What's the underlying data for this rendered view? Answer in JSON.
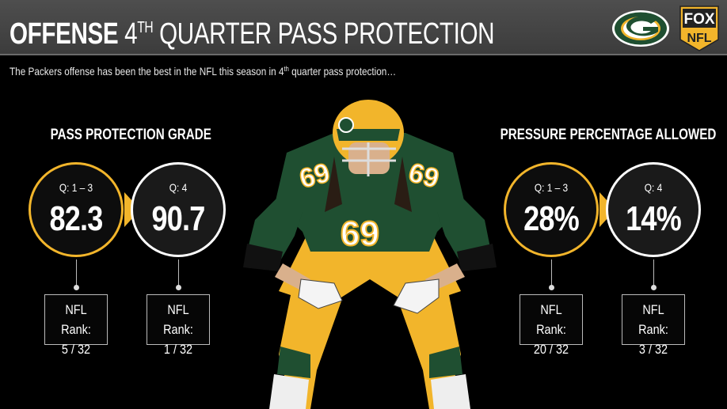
{
  "header": {
    "title_bold": "OFFENSE",
    "title_ordinal": "4",
    "title_sup": "TH",
    "title_rest": "QUARTER PASS PROTECTION",
    "team_logo_icon": "packers-g-logo-icon",
    "network_logo": {
      "line1": "FOX",
      "line2": "NFL"
    }
  },
  "subtitle": {
    "pre": "The Packers offense has been the best in the NFL this season in 4",
    "sup": "th",
    "post": " quarter pass protection…"
  },
  "sections": [
    {
      "title": "PASS PROTECTION GRADE",
      "q13": {
        "label": "Q: 1 – 3",
        "value": "82.3",
        "rank_label": "NFL Rank:",
        "rank": "5 / 32"
      },
      "q4": {
        "label": "Q: 4",
        "value": "90.7",
        "rank_label": "NFL Rank:",
        "rank": "1 / 32"
      }
    },
    {
      "title": "PRESSURE PERCENTAGE ALLOWED",
      "q13": {
        "label": "Q: 1 – 3",
        "value": "28%",
        "rank_label": "NFL Rank:",
        "rank": "20 / 32"
      },
      "q4": {
        "label": "Q: 4",
        "value": "14%",
        "rank_label": "NFL Rank:",
        "rank": "3 / 32"
      }
    }
  ],
  "player": {
    "jersey_number": "69",
    "icon": "football-player-image"
  },
  "colors": {
    "gold": "#f2b52b",
    "green": "#1f4f31",
    "header": "#474747"
  }
}
